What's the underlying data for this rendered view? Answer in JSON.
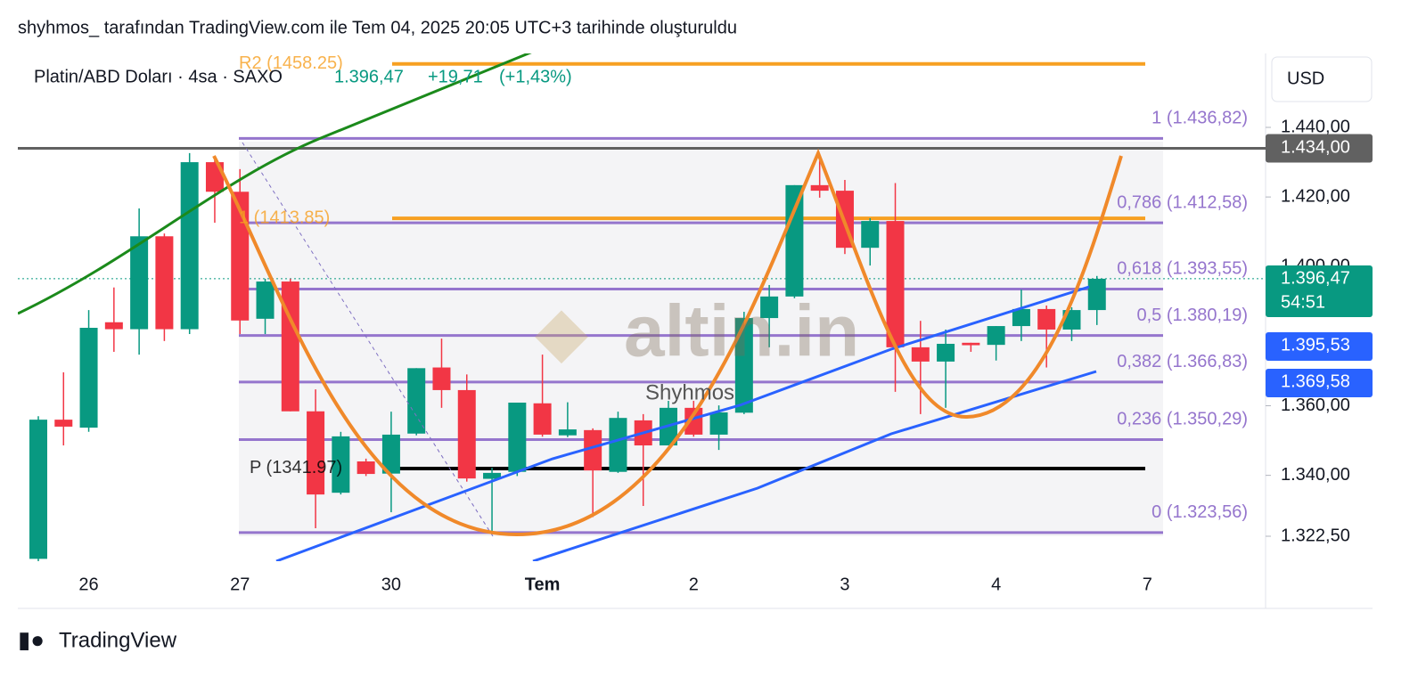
{
  "header": "shyhmos_ tarafından TradingView.com ile Tem 04, 2025 20:05 UTC+3 tarihinde oluşturuldu",
  "footer": "TradingView",
  "legend": {
    "symbol": "Platin/ABD Doları · 4sa · SAXO",
    "price": "1.396,47",
    "change": "+19,71",
    "change_pct": "(+1,43%)"
  },
  "currency": "USD",
  "watermarks": [
    "altin.in",
    "Shyhmos"
  ],
  "chart_data": {
    "type": "candlestick",
    "categories": [
      null,
      null,
      "26",
      null,
      null,
      null,
      null,
      null,
      "27",
      null,
      null,
      null,
      null,
      null,
      "30",
      null,
      null,
      null,
      null,
      null,
      "Tem",
      null,
      null,
      null,
      null,
      null,
      "2",
      null,
      null,
      null,
      null,
      null,
      "3",
      null,
      null,
      null,
      null,
      null,
      "4",
      null,
      null,
      null,
      null,
      null,
      "7"
    ],
    "open": [
      1316,
      1356,
      1353.7,
      1384,
      1382,
      1408.7,
      1382,
      1430,
      1421.5,
      1385,
      1395.7,
      1358.4,
      1335,
      1344,
      1340.5,
      1352,
      1371,
      1364.5,
      1339,
      1341,
      1360.7,
      1351.5,
      1353,
      1341,
      1355.8,
      1348.6,
      1359.4,
      1351.7,
      1358,
      1385.2,
      1391.4,
      1423.4,
      1421.8,
      1405.4,
      1413.1,
      1376.8,
      1372.7,
      1378.1,
      1377.5,
      1382.9,
      1387.8,
      1381.9,
      1387.5,
      null,
      null
    ],
    "high": [
      1357,
      1369.6,
      1387.5,
      1394,
      1416.7,
      1409.5,
      1432.6,
      1431.8,
      1428,
      1396.5,
      1396.5,
      1364.7,
      1352.5,
      1344.8,
      1358.3,
      1370.8,
      1379.3,
      1369,
      1342.2,
      1360.9,
      1374.7,
      1361,
      1353.5,
      1358.3,
      1357.6,
      1361.4,
      1361.4,
      1360.1,
      1387,
      1394.7,
      1423.4,
      1430.5,
      1424.9,
      1413.9,
      1424,
      1384.4,
      1381.9,
      1378.1,
      1382.9,
      1393.4,
      1388.8,
      1388.3,
      1397.3,
      null,
      null
    ],
    "low": [
      1312,
      1348.6,
      1352.5,
      1375.5,
      1374.7,
      1378.6,
      1380.6,
      1412.6,
      1380.6,
      1380.6,
      1358.4,
      1324.8,
      1334.5,
      1339.8,
      1329.4,
      1351.5,
      1359.4,
      1338.2,
      1323,
      1339.8,
      1351.1,
      1351,
      1328,
      1340.7,
      1331.2,
      1348.6,
      1351.1,
      1347.3,
      1357.6,
      1376.8,
      1390.9,
      1419.8,
      1403.6,
      1400.3,
      1364,
      1357.6,
      1359.4,
      1375.5,
      1373,
      1378.6,
      1371,
      1378.6,
      1383.2,
      null,
      null
    ],
    "close": [
      1356,
      1354,
      1382.4,
      1382,
      1408.7,
      1382,
      1430,
      1421.5,
      1384.5,
      1395.7,
      1358.4,
      1334.5,
      1351.2,
      1340.4,
      1351.7,
      1370.8,
      1364.5,
      1339.1,
      1340.7,
      1360.9,
      1351.7,
      1353.2,
      1341.4,
      1356.5,
      1348.6,
      1359.4,
      1351.7,
      1358.1,
      1385.2,
      1391.4,
      1423.4,
      1421.8,
      1405.4,
      1413.1,
      1376.8,
      1372.7,
      1377.8,
      1377.4,
      1382.9,
      1387.8,
      1381.9,
      1387.5,
      1396.5,
      null,
      null
    ],
    "up_color": "#089981",
    "down_color": "#f23645",
    "ylim": [
      1315.33,
      1461.25
    ],
    "yticks": [
      {
        "value": 1322.5,
        "label": "1.322,50"
      },
      {
        "value": 1340,
        "label": "1.340,00"
      },
      {
        "value": 1360,
        "label": "1.360,00"
      },
      {
        "value": 1400,
        "label": "1.400,00"
      },
      {
        "value": 1420,
        "label": "1.420,00"
      },
      {
        "value": 1440,
        "label": "1.440,00"
      }
    ],
    "fib_color": "#9575cd",
    "fib_levels": [
      {
        "value": 1436.82,
        "label": "1 (1.436,82)"
      },
      {
        "value": 1412.58,
        "label": "0,786 (1.412,58)"
      },
      {
        "value": 1393.55,
        "label": "0,618 (1.393,55)"
      },
      {
        "value": 1380.19,
        "label": "0,5 (1.380,19)"
      },
      {
        "value": 1366.83,
        "label": "0,382 (1.366,83)"
      },
      {
        "value": 1350.29,
        "label": "0,236 (1.350,29)"
      },
      {
        "value": 1323.56,
        "label": "0 (1.323,56)"
      }
    ],
    "pivot_levels": [
      {
        "value": 1458.25,
        "label": "R2 (1458.25)",
        "color": "#f7a021"
      },
      {
        "value": 1413.85,
        "label": "1 (1413.85)",
        "color": "#f7a021"
      },
      {
        "value": 1341.97,
        "label": "P (1341.97)",
        "color": "#000000"
      }
    ],
    "horizontal_line": {
      "value": 1434,
      "label": "1.434,00",
      "color": "#616161"
    },
    "price_badges": [
      {
        "label": "1.396,47",
        "sub": "54:51",
        "color": "#089981"
      },
      {
        "label": "1.395,53",
        "color": "#2962ff"
      },
      {
        "label": "1.369,58",
        "color": "#2962ff"
      }
    ]
  }
}
